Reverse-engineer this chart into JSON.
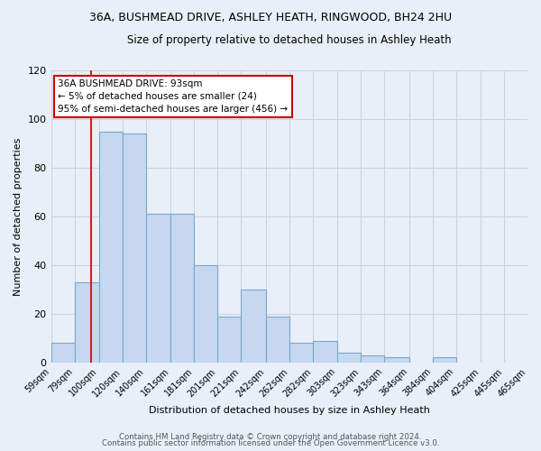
{
  "title": "36A, BUSHMEAD DRIVE, ASHLEY HEATH, RINGWOOD, BH24 2HU",
  "subtitle": "Size of property relative to detached houses in Ashley Heath",
  "xlabel": "Distribution of detached houses by size in Ashley Heath",
  "ylabel": "Number of detached properties",
  "bar_left_edges": [
    59,
    79,
    100,
    120,
    140,
    161,
    181,
    201,
    221,
    242,
    262,
    282,
    303,
    323,
    343,
    364,
    384,
    404,
    425,
    445
  ],
  "bar_heights": [
    8,
    33,
    95,
    94,
    61,
    61,
    40,
    19,
    30,
    19,
    8,
    9,
    4,
    3,
    2,
    0,
    2,
    0,
    0,
    0
  ],
  "bar_widths": [
    20,
    21,
    20,
    20,
    21,
    20,
    20,
    20,
    21,
    20,
    20,
    21,
    20,
    20,
    21,
    20,
    20,
    21,
    20,
    20
  ],
  "bar_color": "#c5d8f0",
  "bar_edge_color": "#7aa8cc",
  "grid_color": "#c8d4e0",
  "bg_color": "#e8eff8",
  "red_line_x": 93,
  "annotation_text_line1": "36A BUSHMEAD DRIVE: 93sqm",
  "annotation_text_line2": "← 5% of detached houses are smaller (24)",
  "annotation_text_line3": "95% of semi-detached houses are larger (456) →",
  "annotation_box_color": "#ffffff",
  "annotation_box_edge_color": "#cc0000",
  "ylim": [
    0,
    120
  ],
  "yticks": [
    0,
    20,
    40,
    60,
    80,
    100,
    120
  ],
  "xlim_left": 59,
  "xlim_right": 465,
  "xtick_positions": [
    59,
    79,
    100,
    120,
    140,
    161,
    181,
    201,
    221,
    242,
    262,
    282,
    303,
    323,
    343,
    364,
    384,
    404,
    425,
    445,
    465
  ],
  "xtick_labels": [
    "59sqm",
    "79sqm",
    "100sqm",
    "120sqm",
    "140sqm",
    "161sqm",
    "181sqm",
    "201sqm",
    "221sqm",
    "242sqm",
    "262sqm",
    "282sqm",
    "303sqm",
    "323sqm",
    "343sqm",
    "364sqm",
    "384sqm",
    "404sqm",
    "425sqm",
    "445sqm",
    "465sqm"
  ],
  "footnote1": "Contains HM Land Registry data © Crown copyright and database right 2024.",
  "footnote2": "Contains public sector information licensed under the Open Government Licence v3.0."
}
